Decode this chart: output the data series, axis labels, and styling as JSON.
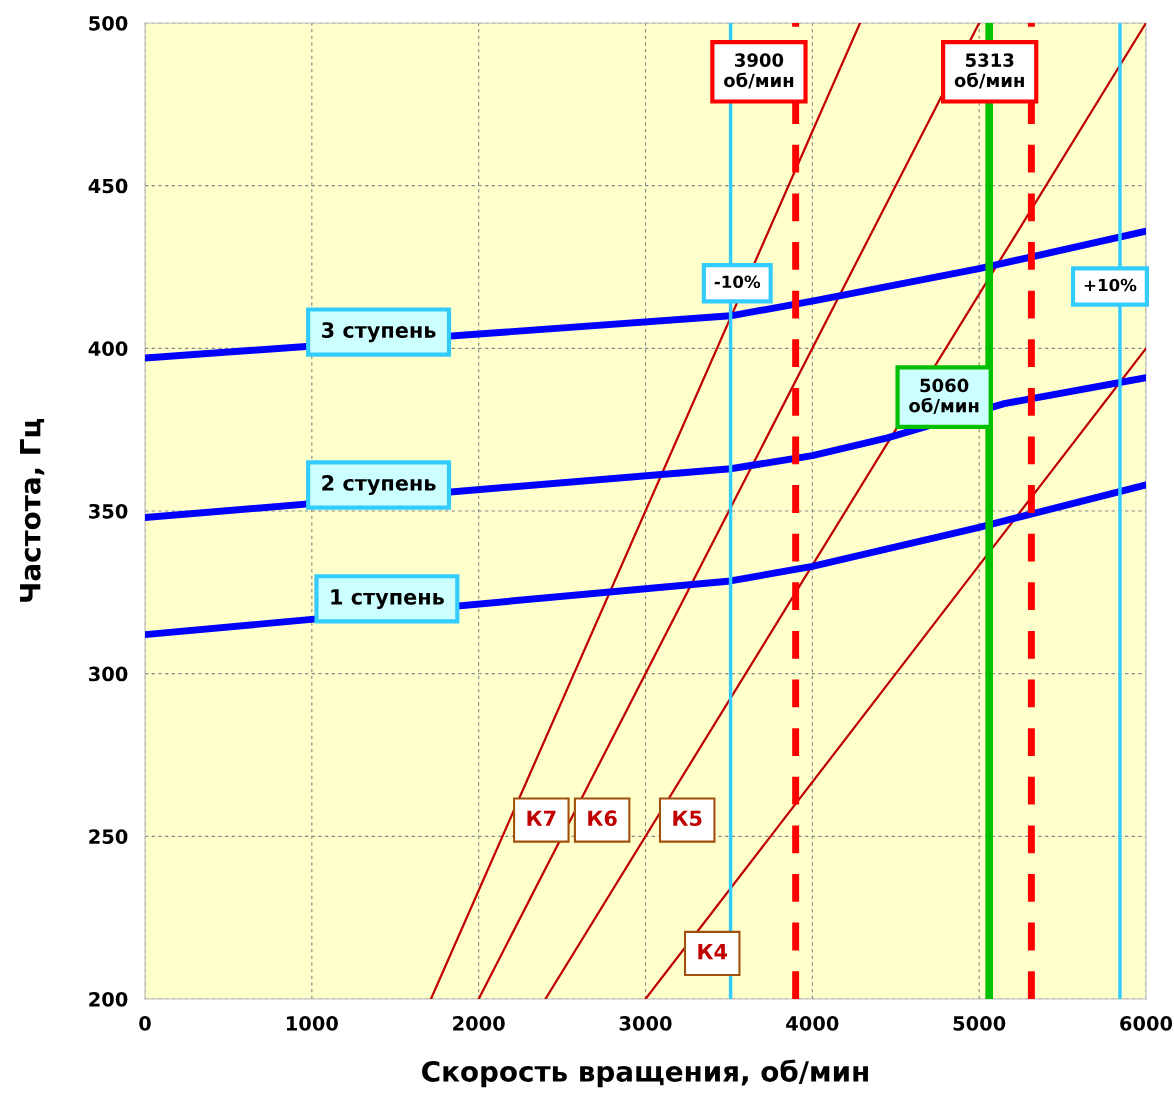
{
  "chart_data": {
    "type": "line",
    "xlabel": "Скорость вращения, об/мин",
    "ylabel": "Частота, Гц",
    "xlim": [
      0,
      6000
    ],
    "ylim": [
      200,
      500
    ],
    "xticks": [
      0,
      1000,
      2000,
      3000,
      4000,
      5000,
      6000
    ],
    "yticks": [
      200,
      250,
      300,
      350,
      400,
      450,
      500
    ],
    "grid": true,
    "legend": false,
    "marker": "none",
    "series": [
      {
        "name": "3 ступень",
        "color": "#0000ff",
        "x": [
          0,
          3510,
          4000,
          5000,
          6000
        ],
        "values": [
          397,
          410,
          414.5,
          424.5,
          436
        ]
      },
      {
        "name": "2 ступень",
        "color": "#0000ff",
        "x": [
          0,
          3510,
          4000,
          4450,
          5150,
          6000
        ],
        "values": [
          348,
          363,
          367,
          372.5,
          383,
          391
        ]
      },
      {
        "name": "1 ступень",
        "color": "#0000ff",
        "x": [
          0,
          3510,
          4000,
          5000,
          6000
        ],
        "values": [
          312,
          328.5,
          333,
          345,
          358
        ]
      },
      {
        "name": "К7",
        "color": "#c00000",
        "x": [
          1714,
          4286
        ],
        "values": [
          200,
          500
        ]
      },
      {
        "name": "К6",
        "color": "#c00000",
        "x": [
          2000,
          5000
        ],
        "values": [
          200,
          500
        ]
      },
      {
        "name": "К5",
        "color": "#c00000",
        "x": [
          2400,
          6000
        ],
        "values": [
          200,
          500
        ]
      },
      {
        "name": "К4",
        "color": "#c00000",
        "x": [
          3000,
          6000
        ],
        "values": [
          200,
          400
        ]
      }
    ],
    "ref_lines": [
      {
        "axis": "x",
        "value": 3510,
        "color": "#33ccff",
        "line_style": "solid"
      },
      {
        "axis": "x",
        "value": 3900,
        "label": "3900\nоб/мин",
        "color": "#ff0000",
        "line_style": "dashed"
      },
      {
        "axis": "x",
        "value": 5060,
        "label": "5060\nоб/мин",
        "color": "#00c000",
        "line_style": "solid"
      },
      {
        "axis": "x",
        "value": 5313,
        "label": "5313\nоб/мин",
        "color": "#ff0000",
        "line_style": "dashed"
      },
      {
        "axis": "x",
        "value": 5844,
        "color": "#33ccff",
        "line_style": "solid"
      }
    ],
    "annotations": [
      {
        "text": "-10%",
        "x": 3510,
        "y": 420
      },
      {
        "text": "+10%",
        "x": 5844,
        "y": 419
      }
    ]
  }
}
